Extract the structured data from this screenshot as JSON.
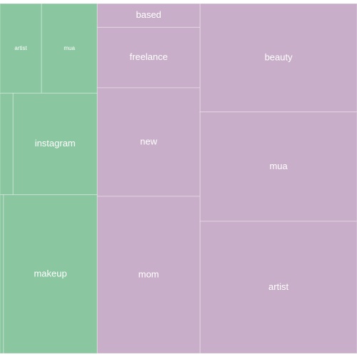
{
  "chart_data": {
    "type": "treemap",
    "groups": [
      {
        "color": "#8ac6a0",
        "labels": [
          "artist",
          "mua",
          null,
          "instagram",
          null,
          "makeup"
        ],
        "values": [
          7.3,
          9.8,
          2.6,
          16.8,
          1.1,
          29.2
        ]
      },
      {
        "color": "#c8aec8",
        "labels": [
          "based",
          "freelance",
          "new",
          "mom",
          "beauty",
          "mua",
          "artist"
        ],
        "values": [
          4.8,
          12.2,
          21.9,
          31.7,
          33.4,
          33.7,
          40.7
        ]
      }
    ]
  }
}
